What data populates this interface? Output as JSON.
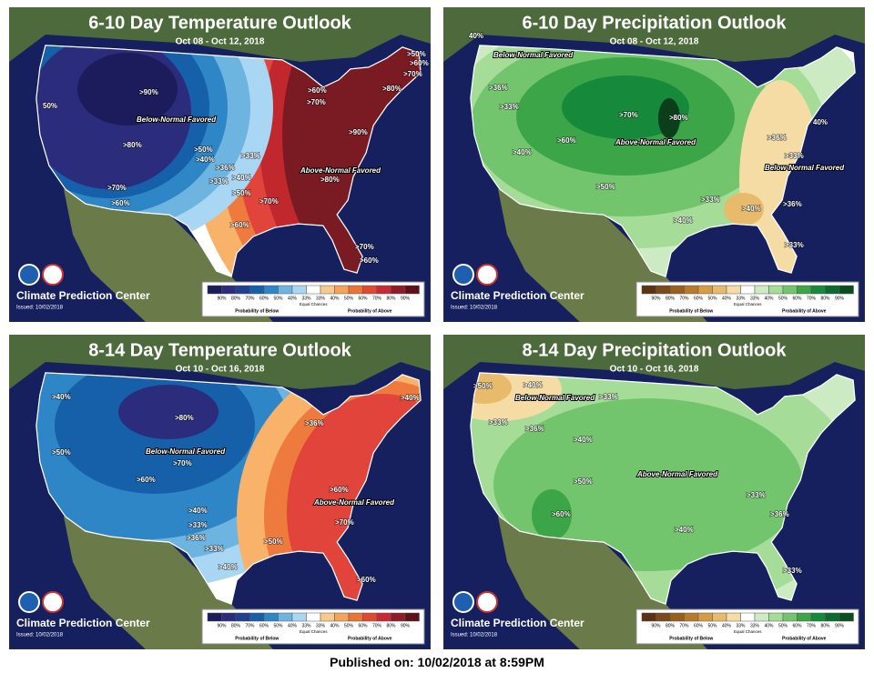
{
  "panels": [
    {
      "title": "6-10 Day Temperature Outlook",
      "dates": "Oct 08 - Oct 12, 2018",
      "labels": [
        ">90%",
        "Below-Normal Favored",
        ">80%",
        ">70%",
        ">60%",
        "50%",
        ">50%",
        ">40%",
        ">33%",
        ">36%",
        ">40%",
        ">33%",
        ">50%",
        ">70%",
        ">60%",
        "Above-Normal Favored",
        ">80%",
        ">90%",
        ">80%",
        ">70%",
        ">60%",
        ">50%",
        ">60%",
        ">70%",
        ">70%",
        ">60%"
      ],
      "credit": "Climate Prediction Center",
      "issued": "Issued: 10/02/2018",
      "legend": {
        "steps": [
          "90%",
          "80%",
          "70%",
          "60%",
          "50%",
          "40%",
          "33%",
          "33%",
          "40%",
          "50%",
          "60%",
          "70%",
          "80%",
          "90%"
        ],
        "equal": "Equal Chances",
        "below": "Probability of Below",
        "above": "Probability of Above"
      }
    },
    {
      "title": "6-10 Day Precipitation Outlook",
      "dates": "Oct 08 - Oct 12, 2018",
      "labels": [
        "40%",
        "Below-Normal Favored",
        ">36%",
        ">33%",
        ">70%",
        ">80%",
        ">60%",
        "Above-Normal Favored",
        ">40%",
        ">50%",
        ">33%",
        ">40%",
        ">36%",
        ">33%",
        "Below-Normal Favored",
        ">40%",
        ">36%",
        ">33%",
        "40%"
      ],
      "credit": "Climate Prediction Center",
      "issued": "Issued: 10/02/2018",
      "legend": {
        "steps": [
          "90%",
          "80%",
          "70%",
          "60%",
          "50%",
          "40%",
          "33%",
          "33%",
          "40%",
          "50%",
          "60%",
          "70%",
          "80%",
          "90%"
        ],
        "equal": "Equal Chances",
        "below": "Probability of Below",
        "above": "Probability of Above"
      }
    },
    {
      "title": "8-14 Day Temperature Outlook",
      "dates": "Oct 10 - Oct 16, 2018",
      "labels": [
        ">40%",
        ">80%",
        "Below-Normal Favored",
        ">70%",
        ">60%",
        ">50%",
        ">36%",
        ">40%",
        "Above-Normal Favored",
        ">60%",
        ">70%",
        ">50%",
        ">40%",
        ">33%",
        ">36%",
        ">33%",
        ">40%",
        ">60%"
      ],
      "credit": "Climate Prediction Center",
      "issued": "Issued: 10/02/2018",
      "legend": {
        "steps": [
          "90%",
          "80%",
          "70%",
          "60%",
          "50%",
          "40%",
          "33%",
          "33%",
          "40%",
          "50%",
          "60%",
          "70%",
          "80%",
          "90%"
        ],
        "equal": "Equal Chances",
        "below": "Probability of Below",
        "above": "Probability of Above"
      }
    },
    {
      "title": "8-14 Day Precipitation Outlook",
      "dates": "Oct 10 - Oct 16, 2018",
      "labels": [
        ">50%",
        ">40%",
        "Below-Normal Favored",
        ">33%",
        ">36%",
        ">33%",
        ">40%",
        ">50%",
        "Above-Normal Favored",
        ">60%",
        ">40%",
        ">33%",
        ">36%",
        ">33%"
      ],
      "credit": "Climate Prediction Center",
      "issued": "Issued: 10/02/2018",
      "legend": {
        "steps": [
          "90%",
          "80%",
          "70%",
          "60%",
          "50%",
          "40%",
          "33%",
          "33%",
          "40%",
          "50%",
          "60%",
          "70%",
          "80%",
          "90%"
        ],
        "equal": "Equal Chances",
        "below": "Probability of Below",
        "above": "Probability of Above"
      }
    }
  ],
  "footer": "Published on: 10/02/2018 at 8:59PM"
}
